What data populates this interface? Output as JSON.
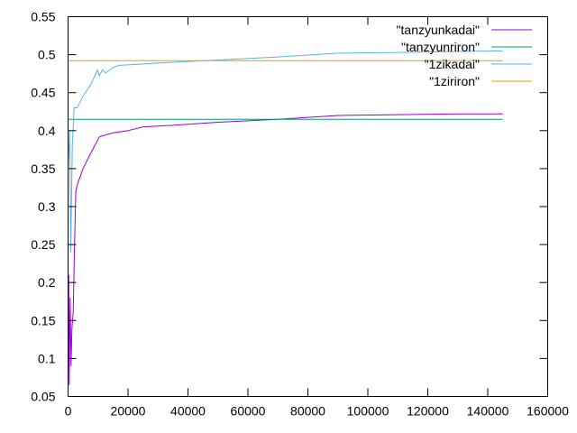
{
  "chart_data": {
    "type": "line",
    "title": "",
    "xlabel": "",
    "ylabel": "",
    "xlim": [
      0,
      160000
    ],
    "ylim": [
      0.05,
      0.55
    ],
    "xticks": [
      0,
      20000,
      40000,
      60000,
      80000,
      100000,
      120000,
      140000,
      160000
    ],
    "yticks": [
      0.05,
      0.1,
      0.15,
      0.2,
      0.25,
      0.3,
      0.35,
      0.4,
      0.45,
      0.5,
      0.55
    ],
    "xtick_labels": [
      "0",
      "20000",
      "40000",
      "60000",
      "80000",
      "100000",
      "120000",
      "140000",
      "160000"
    ],
    "ytick_labels": [
      "0.05",
      "0.1",
      "0.15",
      "0.2",
      "0.25",
      "0.3",
      "0.35",
      "0.4",
      "0.45",
      "0.5",
      "0.55"
    ],
    "grid": false,
    "legend_position": "top-right",
    "series": [
      {
        "name": "\"tanzyunkadai\"",
        "color": "#9400d3",
        "points": [
          [
            0,
            0.065
          ],
          [
            200,
            0.21
          ],
          [
            400,
            0.065
          ],
          [
            700,
            0.18
          ],
          [
            1000,
            0.09
          ],
          [
            1300,
            0.14
          ],
          [
            1700,
            0.16
          ],
          [
            2100,
            0.24
          ],
          [
            2600,
            0.32
          ],
          [
            3200,
            0.33
          ],
          [
            5000,
            0.35
          ],
          [
            7500,
            0.37
          ],
          [
            10500,
            0.392
          ],
          [
            15000,
            0.397
          ],
          [
            20000,
            0.4
          ],
          [
            25000,
            0.405
          ],
          [
            35000,
            0.407
          ],
          [
            50000,
            0.411
          ],
          [
            70000,
            0.415
          ],
          [
            90000,
            0.42
          ],
          [
            110000,
            0.421
          ],
          [
            130000,
            0.422
          ],
          [
            145000,
            0.422
          ]
        ]
      },
      {
        "name": "\"tanzyunriron\"",
        "color": "#009e73",
        "points": [
          [
            0,
            0.415
          ],
          [
            145000,
            0.415
          ]
        ]
      },
      {
        "name": "\"1zikadai\"",
        "color": "#56b4e9",
        "points": [
          [
            0,
            0.35
          ],
          [
            500,
            0.4
          ],
          [
            900,
            0.24
          ],
          [
            1400,
            0.38
          ],
          [
            2000,
            0.43
          ],
          [
            3000,
            0.43
          ],
          [
            5000,
            0.445
          ],
          [
            7500,
            0.46
          ],
          [
            9800,
            0.48
          ],
          [
            10400,
            0.472
          ],
          [
            11500,
            0.48
          ],
          [
            12500,
            0.476
          ],
          [
            15000,
            0.483
          ],
          [
            17000,
            0.486
          ],
          [
            22000,
            0.487
          ],
          [
            30000,
            0.489
          ],
          [
            50000,
            0.493
          ],
          [
            70000,
            0.497
          ],
          [
            90000,
            0.502
          ],
          [
            110000,
            0.503
          ],
          [
            145000,
            0.505
          ]
        ]
      },
      {
        "name": "\"1ziriron\"",
        "color": "#e69f00",
        "points": [
          [
            0,
            0.492
          ],
          [
            145000,
            0.492
          ]
        ]
      }
    ]
  }
}
